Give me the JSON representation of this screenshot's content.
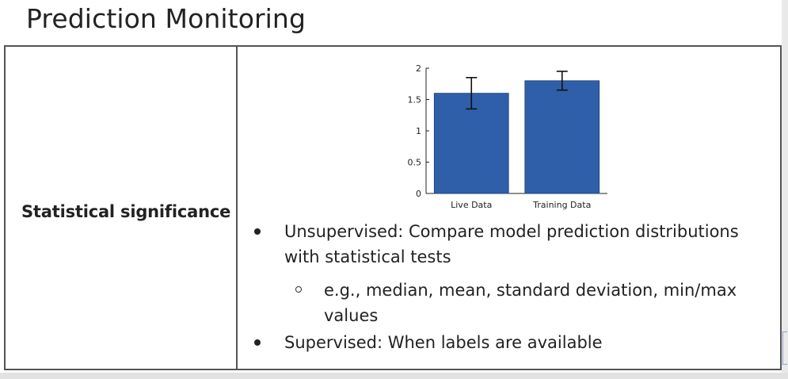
{
  "slide": {
    "title": "Prediction Monitoring"
  },
  "table": {
    "row_label": "Statistical significance",
    "bullets": [
      {
        "text": "Unsupervised: Compare model prediction distributions with statistical tests"
      },
      {
        "text": "Supervised: When labels are available"
      }
    ],
    "sub_bullet": "e.g., median, mean, standard deviation, min/max values"
  },
  "chart_data": {
    "type": "bar",
    "categories": [
      "Live Data",
      "Training Data"
    ],
    "values": [
      1.6,
      1.8
    ],
    "error_low": [
      1.35,
      1.65
    ],
    "error_high": [
      1.85,
      1.95
    ],
    "ylim": [
      0,
      2
    ],
    "yticks": [
      "0",
      "0.5",
      "1",
      "1.5",
      "2"
    ],
    "bar_color": "#2f5fa8",
    "title": "",
    "xlabel": "",
    "ylabel": ""
  }
}
